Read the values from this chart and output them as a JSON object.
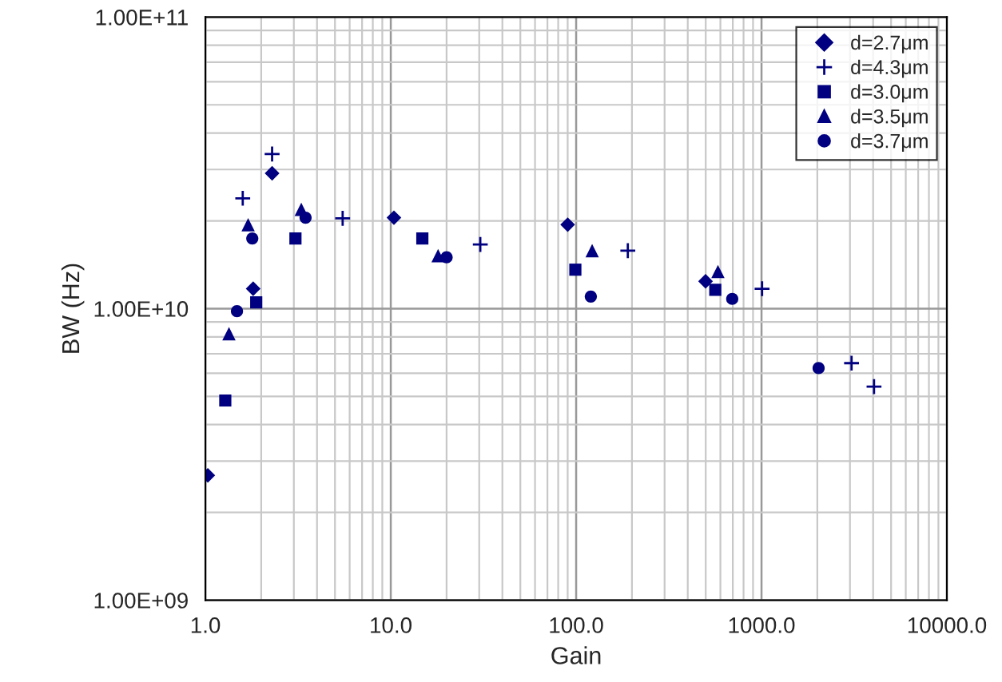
{
  "chart_data": {
    "type": "scatter",
    "xlabel": "Gain",
    "ylabel": "BW (Hz)",
    "log": "xy",
    "grid": true,
    "legend": "top right",
    "xlim": [
      1,
      10000
    ],
    "xticks": [
      {
        "value": 1,
        "label": "1.0"
      },
      {
        "value": 10,
        "label": "10.0"
      },
      {
        "value": 100,
        "label": "100.0"
      },
      {
        "value": 1000,
        "label": "1000.0"
      },
      {
        "value": 10000,
        "label": "10000.0"
      }
    ],
    "ylim": [
      1000000000.0,
      100000000000.0
    ],
    "yticks": [
      {
        "value": 1000000000.0,
        "label": "1.00E+09"
      },
      {
        "value": 10000000000.0,
        "label": "1.00E+10"
      },
      {
        "value": 100000000000.0,
        "label": "1.00E+11"
      }
    ],
    "series": [
      {
        "name": "d=2.7μm",
        "color": "#000080",
        "marker": "diamond",
        "x": [
          1.03,
          1.81,
          2.29,
          10.4,
          90,
          499
        ],
        "values": [
          2680000000.0,
          11700000000.0,
          29100000000.0,
          20500000000.0,
          19400000000.0,
          12400000000.0
        ]
      },
      {
        "name": "d=4.3μm",
        "color": "#000080",
        "marker": "cross",
        "x": [
          1.59,
          2.29,
          5.5,
          30.4,
          190,
          1007,
          3060,
          4045
        ],
        "values": [
          23900000000.0,
          33900000000.0,
          20400000000.0,
          16600000000.0,
          15800000000.0,
          11700000000.0,
          6500000000.0,
          5400000000.0
        ]
      },
      {
        "name": "d=3.0μm",
        "color": "#000080",
        "marker": "square",
        "x": [
          1.28,
          1.88,
          3.06,
          14.8,
          99,
          563
        ],
        "values": [
          4840000000.0,
          10500000000.0,
          17400000000.0,
          17400000000.0,
          13600000000.0,
          11600000000.0
        ]
      },
      {
        "name": "d=3.5μm",
        "color": "#000080",
        "marker": "triangle",
        "x": [
          1.34,
          1.7,
          3.29,
          18.0,
          122,
          582
        ],
        "values": [
          8200000000.0,
          19400000000.0,
          21900000000.0,
          15200000000.0,
          15800000000.0,
          13400000000.0
        ]
      },
      {
        "name": "d=3.7μm",
        "color": "#000080",
        "marker": "circle",
        "x": [
          1.48,
          1.79,
          3.47,
          20.0,
          120,
          695,
          2032
        ],
        "values": [
          9800000000.0,
          17400000000.0,
          20500000000.0,
          15000000000.0,
          11000000000.0,
          10800000000.0,
          6250000000.0
        ]
      }
    ]
  }
}
